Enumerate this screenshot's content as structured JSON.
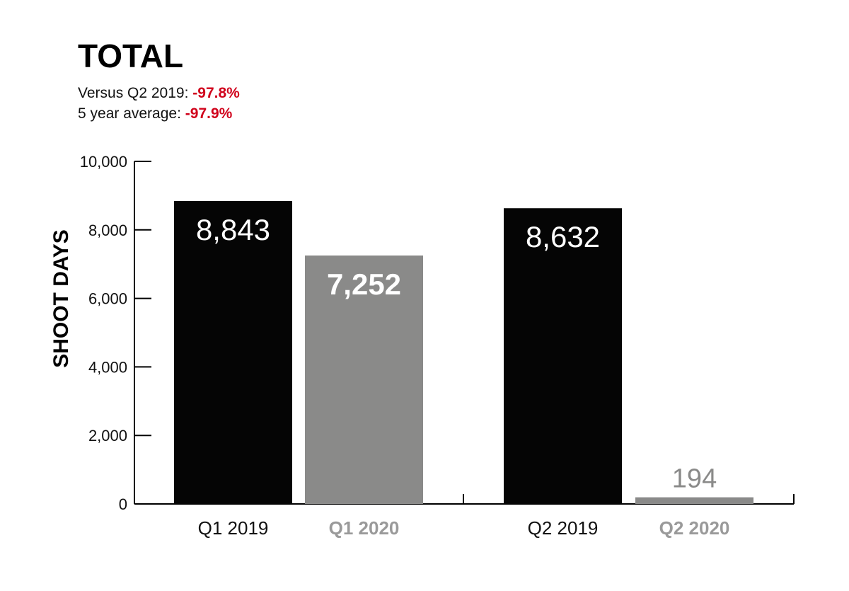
{
  "chart_data": {
    "type": "bar",
    "title": "TOTAL",
    "subtitles": [
      {
        "label": "Versus Q2 2019: ",
        "value": "-97.8%"
      },
      {
        "label": "5 year average: ",
        "value": "-97.9%"
      }
    ],
    "ylabel": "SHOOT DAYS",
    "xlabel": "",
    "ylim": [
      0,
      10000
    ],
    "yticks": [
      "0",
      "2,000",
      "4,000",
      "6,000",
      "8,000",
      "10,000"
    ],
    "yticks_values": [
      0,
      2000,
      4000,
      6000,
      8000,
      10000
    ],
    "categories": [
      "Q1 2019",
      "Q1 2020",
      "Q2 2019",
      "Q2 2020"
    ],
    "values": [
      8843,
      7252,
      8632,
      194
    ],
    "value_labels": [
      "8,843",
      "7,252",
      "8,632",
      "194"
    ],
    "bar_colors": [
      "#050505",
      "#8a8a89",
      "#050505",
      "#8a8a89"
    ],
    "category_label_colors": [
      "#111111",
      "#9a9a9a",
      "#111111",
      "#9a9a9a"
    ],
    "value_label_colors": [
      "#ffffff",
      "#ffffff",
      "#ffffff",
      "#8a8a89"
    ],
    "highlight_color": "#d0021b",
    "grid": false,
    "legend": "none"
  }
}
